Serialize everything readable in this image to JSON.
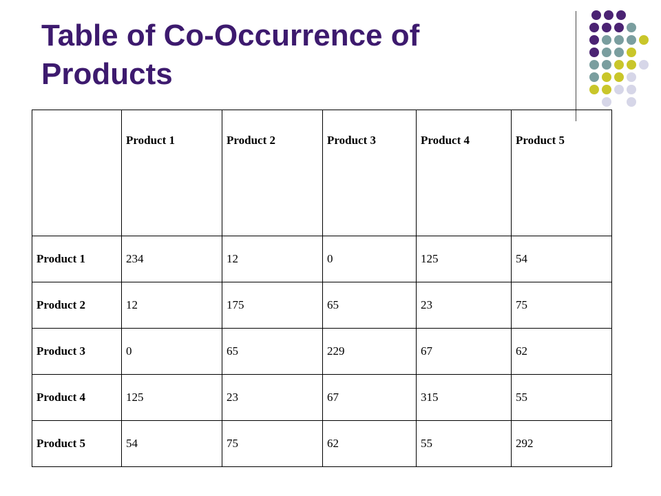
{
  "slide": {
    "title": "Table of Co-Occurrence of Products"
  },
  "colors": {
    "title": "#3d1a6e",
    "dot_purple": "#4b2373",
    "dot_teal": "#7a9e9f",
    "dot_olive": "#c9c62a",
    "dot_lavender": "#d6d6e8"
  },
  "table": {
    "columns": [
      "",
      "Product 1",
      "Product 2",
      "Product 3",
      "Product 4",
      "Product 5"
    ],
    "rows": [
      {
        "label": "Product 1",
        "values": [
          "234",
          "12",
          "0",
          "125",
          "54"
        ]
      },
      {
        "label": "Product 2",
        "values": [
          "12",
          "175",
          "65",
          "23",
          "75"
        ]
      },
      {
        "label": "Product 3",
        "values": [
          "0",
          "65",
          "229",
          "67",
          "62"
        ]
      },
      {
        "label": "Product 4",
        "values": [
          "125",
          "23",
          "67",
          "315",
          "55"
        ]
      },
      {
        "label": "Product 5",
        "values": [
          "54",
          "75",
          "62",
          "55",
          "292"
        ]
      }
    ]
  }
}
